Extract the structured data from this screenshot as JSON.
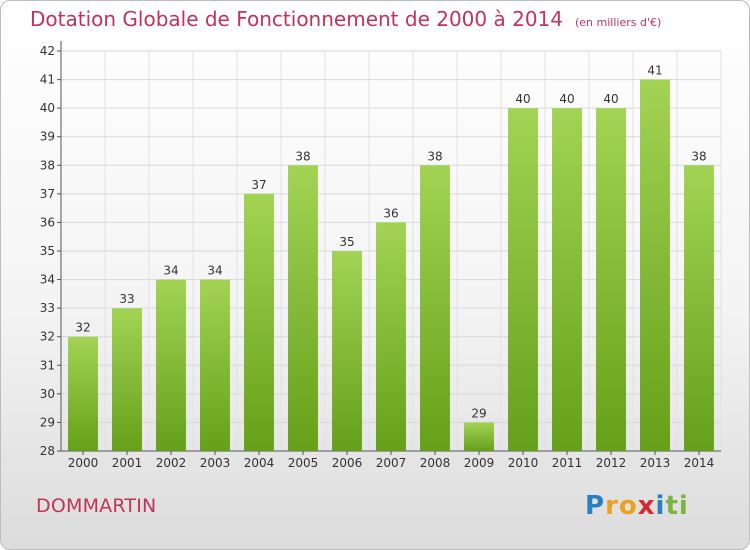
{
  "chart_data": {
    "type": "bar",
    "title": "Dotation Globale de Fonctionnement de 2000 à 2014",
    "subtitle": "(en milliers d'€)",
    "categories": [
      "2000",
      "2001",
      "2002",
      "2003",
      "2004",
      "2005",
      "2006",
      "2007",
      "2008",
      "2009",
      "2010",
      "2011",
      "2012",
      "2013",
      "2014"
    ],
    "values": [
      32,
      33,
      34,
      34,
      37,
      38,
      35,
      36,
      38,
      29,
      40,
      40,
      40,
      41,
      38
    ],
    "ylim": [
      28,
      42
    ],
    "yticks": [
      28,
      29,
      30,
      31,
      32,
      33,
      34,
      35,
      36,
      37,
      38,
      39,
      40,
      41,
      42
    ],
    "grid": true,
    "bar_color": "#7dbb2e"
  },
  "footer": {
    "place": "DOMMARTIN"
  },
  "logo": {
    "letters": [
      "P",
      "r",
      "o",
      "x",
      "i",
      "t",
      "i"
    ],
    "colors": [
      "#2a7fc1",
      "#e8a21b",
      "#e8a21b",
      "#d9272e",
      "#2a7fc1",
      "#7cb342",
      "#7cb342"
    ]
  }
}
